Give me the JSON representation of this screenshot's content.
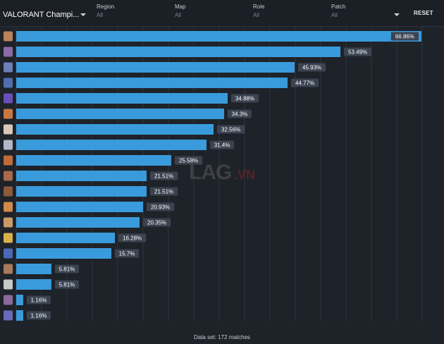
{
  "filters": {
    "main": {
      "value": "VALORANT Champi..."
    },
    "region": {
      "label": "Region",
      "value": "All"
    },
    "map": {
      "label": "Map",
      "value": "All"
    },
    "role": {
      "label": "Role",
      "value": "All"
    },
    "patch": {
      "label": "Patch",
      "value": "All"
    },
    "reset_label": "RESET"
  },
  "footer": {
    "text": "Data set: 172 matches"
  },
  "watermark": {
    "brand": "LAG",
    "suffix": ".VN"
  },
  "colors": {
    "bar": "#3a9bdc",
    "label_bg": "#3b4350",
    "grid": "#2f353e"
  },
  "chart_data": {
    "type": "bar",
    "orientation": "horizontal",
    "categories": [
      "",
      "",
      "",
      "",
      "",
      "",
      "",
      "",
      "",
      "",
      "",
      "",
      "",
      "",
      "",
      "",
      "",
      "",
      ""
    ],
    "values": [
      66.86,
      53.49,
      45.93,
      44.77,
      34.88,
      34.3,
      32.56,
      31.4,
      25.58,
      21.51,
      21.51,
      20.93,
      20.35,
      16.28,
      15.7,
      5.81,
      5.81,
      1.16,
      1.16
    ],
    "value_labels": [
      "66.86%",
      "53.49%",
      "45.93%",
      "44.77%",
      "34.88%",
      "34.3%",
      "32.56%",
      "31.4%",
      "25.58%",
      "21.51%",
      "21.51%",
      "20.93%",
      "20.35%",
      "16.28%",
      "15.7%",
      "5.81%",
      "5.81%",
      "1.16%",
      "1.16%"
    ],
    "icon_colors": [
      "#b9825a",
      "#8a6aa8",
      "#6c7fb8",
      "#4f6fae",
      "#6b4fb8",
      "#c8793f",
      "#d8c8b8",
      "#b0b8c8",
      "#c06a3a",
      "#a86a4a",
      "#8a5a3a",
      "#d08a4a",
      "#c89a6a",
      "#d6b24a",
      "#4a6ab8",
      "#a87a5a",
      "#c8c8c8",
      "#8a6a9a",
      "#6a6ab8"
    ],
    "xlim": [
      0,
      66.86
    ],
    "grid": true
  }
}
